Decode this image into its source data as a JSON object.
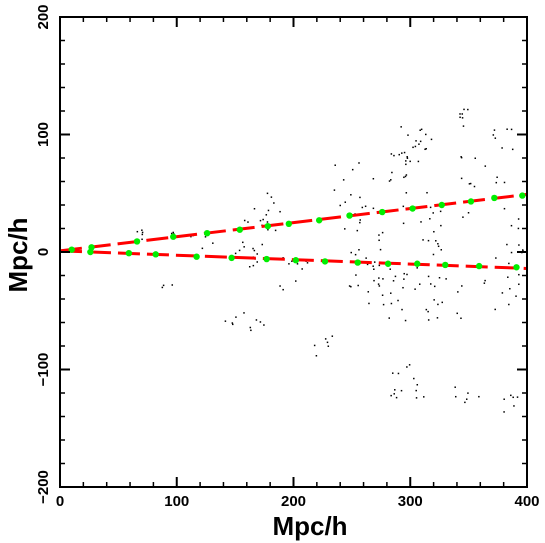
{
  "chart_data": {
    "type": "scatter",
    "title": "",
    "xlabel": "Mpc/h",
    "ylabel": "Mpc/h",
    "xlim": [
      0,
      400
    ],
    "ylim": [
      -200,
      200
    ],
    "xticks": [
      0,
      100,
      200,
      300,
      400
    ],
    "yticks": [
      -200,
      -100,
      0,
      100,
      200
    ],
    "x_tick_labels": [
      "0",
      "100",
      "200",
      "300",
      "400"
    ],
    "y_tick_labels": [
      "−200",
      "−100",
      "0",
      "100",
      "200"
    ],
    "grid": false,
    "legend": "none",
    "colors": {
      "points": "#000000",
      "line_red": "#ff0000",
      "line_green": "#00ee00"
    },
    "lines": [
      {
        "x": [
          0,
          400
        ],
        "y": [
          1,
          49
        ],
        "style": "dashed",
        "color": "#ff0000"
      },
      {
        "x": [
          0,
          400
        ],
        "y": [
          1,
          -14
        ],
        "style": "dashed",
        "color": "#ff0000"
      }
    ],
    "green_points": [
      {
        "x": [
          10,
          27,
          66,
          97,
          126,
          154,
          178,
          196,
          222,
          248,
          276,
          302,
          327,
          352,
          372,
          396
        ],
        "y": [
          2,
          4,
          9,
          13,
          16,
          19,
          22,
          24,
          27,
          31,
          34,
          37,
          40,
          43,
          46,
          48
        ]
      },
      {
        "x": [
          26,
          59,
          82,
          117,
          147,
          177,
          202,
          227,
          255,
          281,
          306,
          330,
          359,
          391
        ],
        "y": [
          0,
          -1,
          -2,
          -4,
          -5,
          -6,
          -7,
          -8,
          -9,
          -10,
          -10,
          -11,
          -12,
          -13
        ]
      }
    ],
    "clusters": [
      {
        "x": 69,
        "y": 13,
        "n": 5,
        "sx": 3,
        "sy": 4
      },
      {
        "x": 95,
        "y": 18,
        "n": 3,
        "sx": 3,
        "sy": 3
      },
      {
        "x": 92,
        "y": -30,
        "n": 3,
        "sx": 4,
        "sy": 2
      },
      {
        "x": 160,
        "y": 8,
        "n": 16,
        "sx": 10,
        "sy": 18
      },
      {
        "x": 180,
        "y": 35,
        "n": 12,
        "sx": 10,
        "sy": 12
      },
      {
        "x": 158,
        "y": -62,
        "n": 10,
        "sx": 12,
        "sy": 8
      },
      {
        "x": 205,
        "y": -22,
        "n": 10,
        "sx": 12,
        "sy": 14
      },
      {
        "x": 225,
        "y": -80,
        "n": 6,
        "sx": 10,
        "sy": 6
      },
      {
        "x": 250,
        "y": 50,
        "n": 14,
        "sx": 14,
        "sy": 22
      },
      {
        "x": 265,
        "y": 0,
        "n": 24,
        "sx": 15,
        "sy": 28
      },
      {
        "x": 280,
        "y": -40,
        "n": 18,
        "sx": 12,
        "sy": 14
      },
      {
        "x": 290,
        "y": 72,
        "n": 12,
        "sx": 8,
        "sy": 10
      },
      {
        "x": 305,
        "y": 90,
        "n": 18,
        "sx": 10,
        "sy": 12
      },
      {
        "x": 310,
        "y": 10,
        "n": 26,
        "sx": 12,
        "sy": 30
      },
      {
        "x": 300,
        "y": -110,
        "n": 14,
        "sx": 12,
        "sy": 12
      },
      {
        "x": 330,
        "y": -40,
        "n": 14,
        "sx": 12,
        "sy": 14
      },
      {
        "x": 345,
        "y": 115,
        "n": 7,
        "sx": 6,
        "sy": 6
      },
      {
        "x": 360,
        "y": 60,
        "n": 16,
        "sx": 16,
        "sy": 22
      },
      {
        "x": 375,
        "y": -20,
        "n": 14,
        "sx": 14,
        "sy": 22
      },
      {
        "x": 395,
        "y": 30,
        "n": 10,
        "sx": 6,
        "sy": 22
      },
      {
        "x": 390,
        "y": -130,
        "n": 6,
        "sx": 8,
        "sy": 6
      },
      {
        "x": 345,
        "y": -120,
        "n": 6,
        "sx": 12,
        "sy": 6
      },
      {
        "x": 380,
        "y": 95,
        "n": 6,
        "sx": 8,
        "sy": 10
      },
      {
        "x": 120,
        "y": 5,
        "n": 6,
        "sx": 10,
        "sy": 8
      }
    ]
  }
}
